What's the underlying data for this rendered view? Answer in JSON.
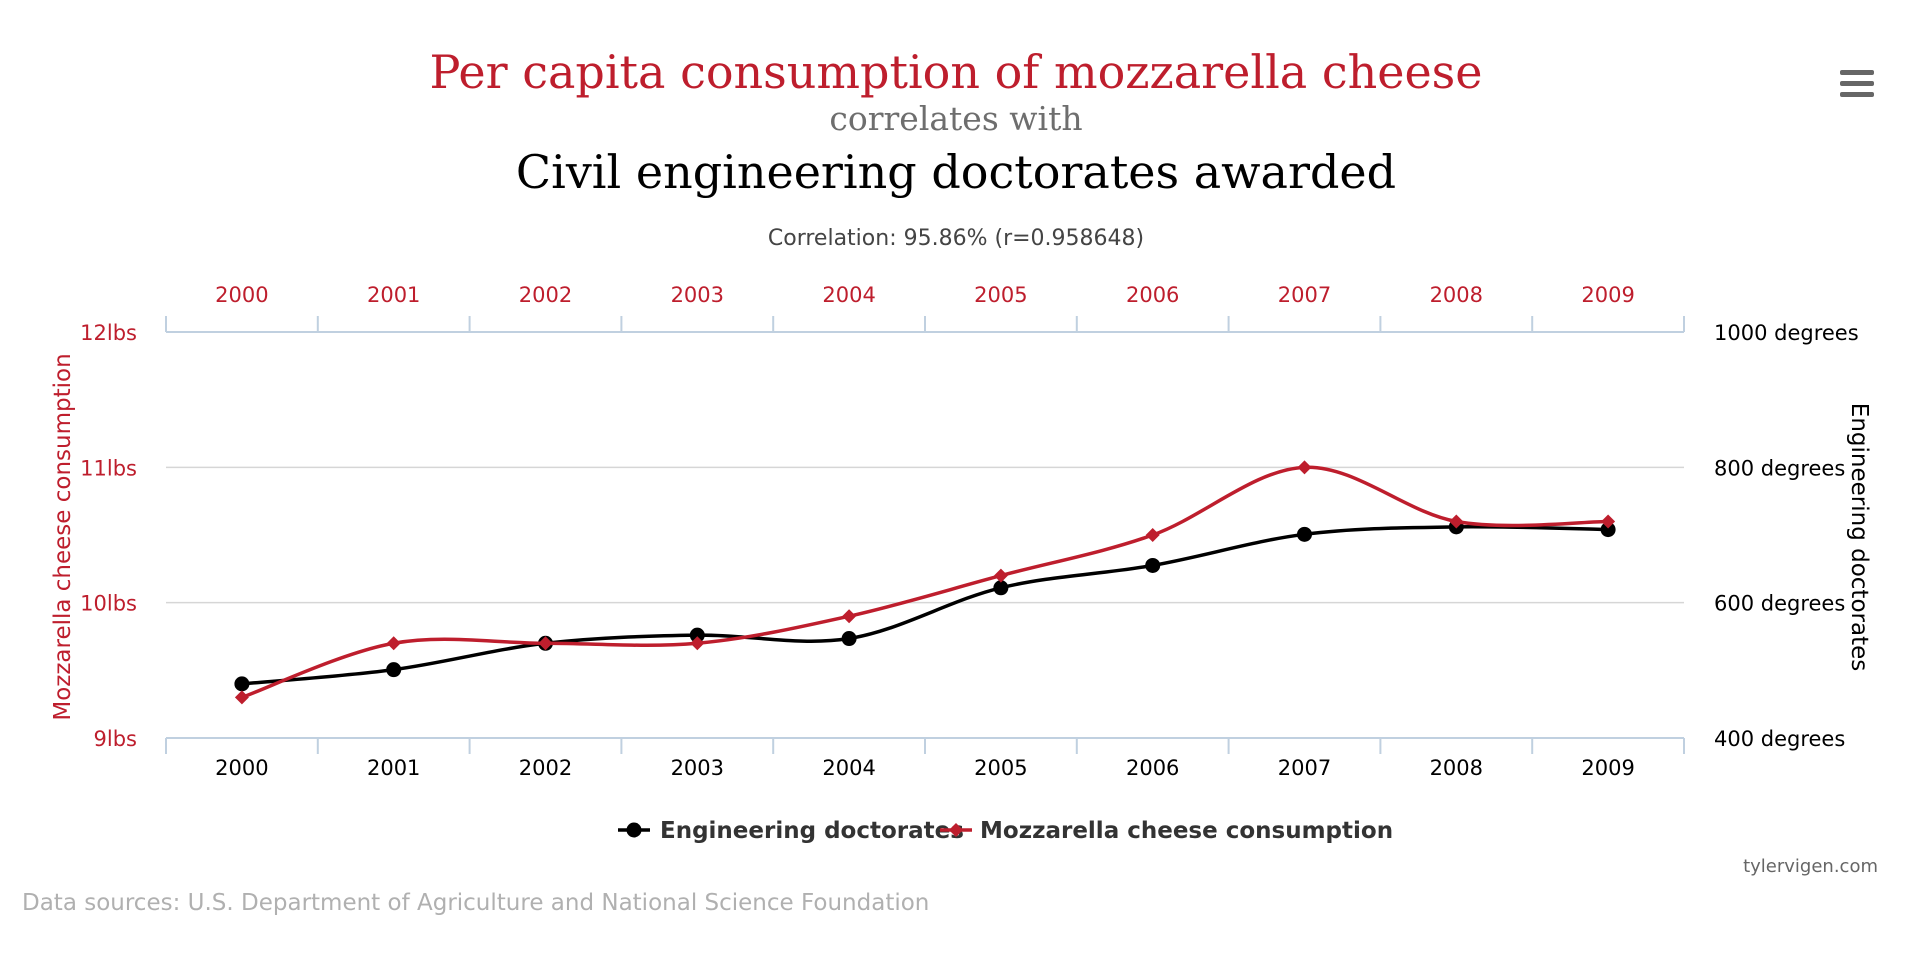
{
  "titles": {
    "main": "Per capita consumption of mozzarella cheese",
    "connector": "correlates with",
    "secondary": "Civil engineering doctorates awarded",
    "correlation": "Correlation: 95.86% (r=0.958648)"
  },
  "footer": {
    "sources": "Data sources: U.S. Department of Agriculture and National Science Foundation",
    "credit": "tylervigen.com"
  },
  "menu": {
    "icon": "hamburger-menu-icon"
  },
  "colors": {
    "mozzarella": "#be1e2d",
    "engineering": "#000000",
    "grid": "#d6d6d6",
    "axis": "#c0d0e0",
    "sources": "#b0b0b0",
    "connector": "#6e6e6e"
  },
  "chart_data": {
    "type": "line",
    "x": [
      "2000",
      "2001",
      "2002",
      "2003",
      "2004",
      "2005",
      "2006",
      "2007",
      "2008",
      "2009"
    ],
    "left_axis": {
      "label": "Mozzarella cheese consumption",
      "ylim": [
        9,
        12
      ],
      "ticks": [
        9,
        10,
        11,
        12
      ],
      "tick_labels": [
        "9lbs",
        "10lbs",
        "11lbs",
        "12lbs"
      ]
    },
    "right_axis": {
      "label": "Engineering doctorates",
      "ylim": [
        400,
        1000
      ],
      "ticks": [
        400,
        600,
        800,
        1000
      ],
      "tick_labels": [
        "400 degrees",
        "600 degrees",
        "800 degrees",
        "1000 degrees"
      ]
    },
    "series": [
      {
        "name": "Engineering doctorates",
        "axis": "right",
        "marker": "circle",
        "values": [
          480,
          501,
          540,
          552,
          547,
          622,
          655,
          701,
          712,
          708
        ]
      },
      {
        "name": "Mozzarella cheese consumption",
        "axis": "left",
        "marker": "diamond",
        "values": [
          9.3,
          9.7,
          9.7,
          9.7,
          9.9,
          10.2,
          10.5,
          11.0,
          10.6,
          10.6
        ]
      }
    ],
    "grid": true,
    "legend": "bottom-center"
  }
}
